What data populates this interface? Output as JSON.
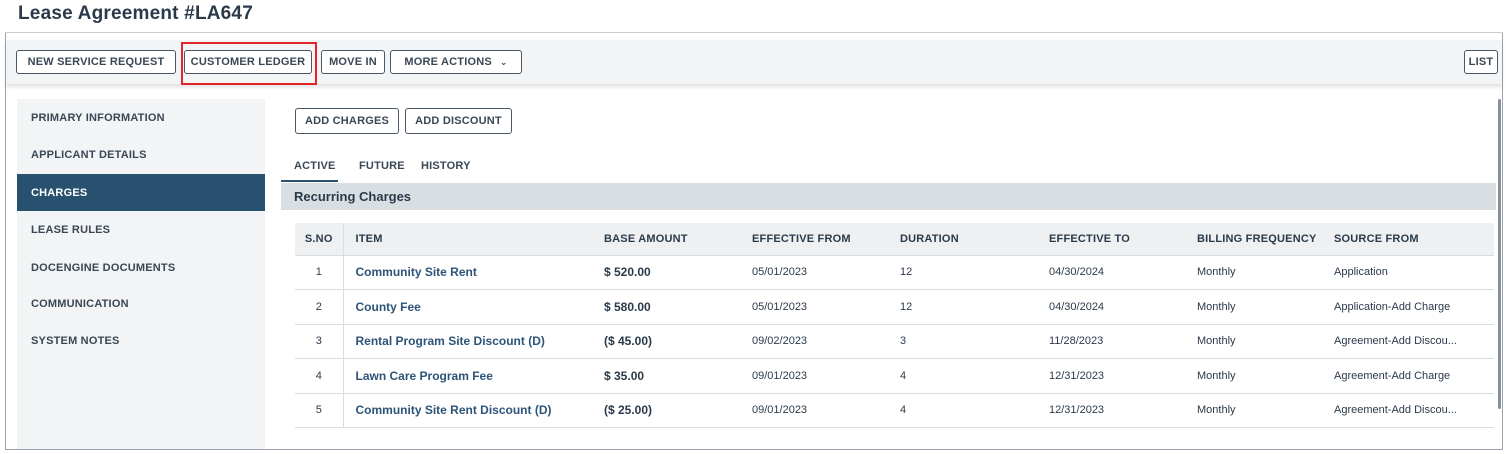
{
  "page": {
    "title": "Lease Agreement #LA647"
  },
  "toolbar": {
    "new_service_request": "NEW SERVICE REQUEST",
    "customer_ledger": "CUSTOMER LEDGER",
    "move_in": "MOVE IN",
    "more_actions": "MORE ACTIONS",
    "more_actions_chevron": "⌄",
    "list": "LIST"
  },
  "highlight_color": "#e0262b",
  "sidebar": {
    "items": [
      {
        "label": "PRIMARY INFORMATION"
      },
      {
        "label": "APPLICANT DETAILS"
      },
      {
        "label": "CHARGES",
        "active": true
      },
      {
        "label": "LEASE RULES"
      },
      {
        "label": "DOCENGINE DOCUMENTS"
      },
      {
        "label": "COMMUNICATION"
      },
      {
        "label": "SYSTEM NOTES"
      }
    ]
  },
  "content": {
    "add_charges": "ADD CHARGES",
    "add_discount": "ADD DISCOUNT",
    "tabs": [
      "ACTIVE",
      "FUTURE",
      "HISTORY"
    ],
    "section_title": "Recurring Charges"
  },
  "table": {
    "headers": [
      "S.NO",
      "ITEM",
      "BASE AMOUNT",
      "EFFECTIVE FROM",
      "DURATION",
      "EFFECTIVE TO",
      "BILLING FREQUENCY",
      "SOURCE FROM"
    ],
    "rows": [
      [
        "1",
        "Community Site Rent",
        "$ 520.00",
        "05/01/2023",
        "12",
        "04/30/2024",
        "Monthly",
        "Application"
      ],
      [
        "2",
        "County Fee",
        "$ 580.00",
        "05/01/2023",
        "12",
        "04/30/2024",
        "Monthly",
        "Application-Add Charge"
      ],
      [
        "3",
        "Rental Program Site Discount (D)",
        "($ 45.00)",
        "09/02/2023",
        "3",
        "11/28/2023",
        "Monthly",
        "Agreement-Add Discou..."
      ],
      [
        "4",
        "Lawn Care Program Fee",
        "$ 35.00",
        "09/01/2023",
        "4",
        "12/31/2023",
        "Monthly",
        "Agreement-Add Charge"
      ],
      [
        "5",
        "Community Site Rent Discount (D)",
        "($ 25.00)",
        "09/01/2023",
        "4",
        "12/31/2023",
        "Monthly",
        "Agreement-Add Discou..."
      ]
    ]
  }
}
